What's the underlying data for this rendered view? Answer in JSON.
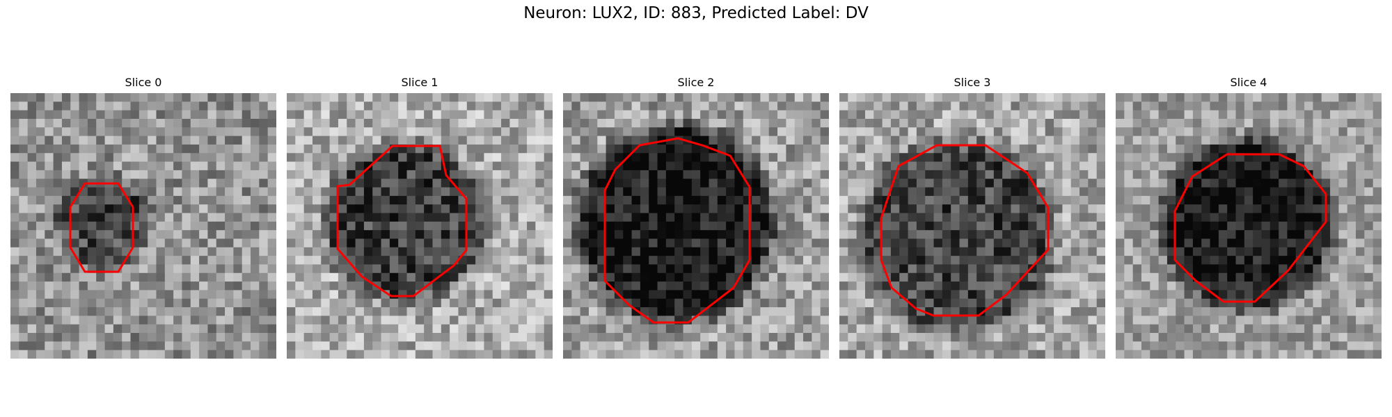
{
  "title": "Neuron: LUX2, ID: 883, Predicted Label: DV",
  "contour_color": "#ff0000",
  "panels": [
    {
      "title": "Slice 0",
      "seed": 11,
      "darkness": 0.35,
      "background": 0.58,
      "contrast": 0.22
    },
    {
      "title": "Slice 1",
      "seed": 23,
      "darkness": 0.5,
      "background": 0.68,
      "contrast": 0.22
    },
    {
      "title": "Slice 2",
      "seed": 37,
      "darkness": 0.62,
      "background": 0.62,
      "contrast": 0.22
    },
    {
      "title": "Slice 3",
      "seed": 51,
      "darkness": 0.45,
      "background": 0.65,
      "contrast": 0.22
    },
    {
      "title": "Slice 4",
      "seed": 67,
      "darkness": 0.6,
      "background": 0.62,
      "contrast": 0.18
    }
  ]
}
